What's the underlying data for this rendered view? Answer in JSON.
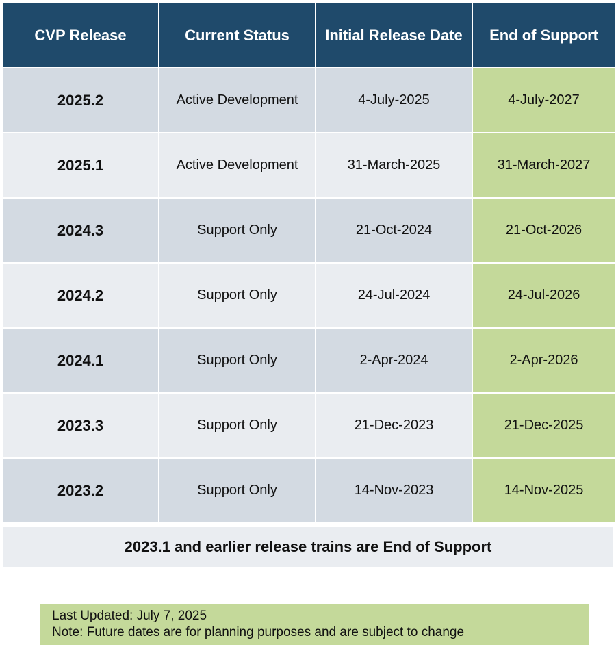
{
  "table": {
    "headers": [
      "CVP Release",
      "Current Status",
      "Initial Release Date",
      "End of Support"
    ],
    "rows": [
      {
        "release": "2025.2",
        "status": "Active Development",
        "initial": "4-July-2025",
        "end": "4-July-2027"
      },
      {
        "release": "2025.1",
        "status": "Active Development",
        "initial": "31-March-2025",
        "end": "31-March-2027"
      },
      {
        "release": "2024.3",
        "status": "Support Only",
        "initial": "21-Oct-2024",
        "end": "21-Oct-2026"
      },
      {
        "release": "2024.2",
        "status": "Support Only",
        "initial": "24-Jul-2024",
        "end": "24-Jul-2026"
      },
      {
        "release": "2024.1",
        "status": "Support Only",
        "initial": "2-Apr-2024",
        "end": "2-Apr-2026"
      },
      {
        "release": "2023.3",
        "status": "Support Only",
        "initial": "21-Dec-2023",
        "end": "21-Dec-2025"
      },
      {
        "release": "2023.2",
        "status": "Support Only",
        "initial": "14-Nov-2023",
        "end": "14-Nov-2025"
      }
    ],
    "footer_note": "2023.1 and earlier release trains are End of Support"
  },
  "notice": {
    "last_updated": "Last Updated: July 7, 2025",
    "note": "Note: Future dates are for planning purposes and are subject to change"
  },
  "colors": {
    "header_bg": "#1f4a6b",
    "row_dark": "#d3dae2",
    "row_light": "#eaedf1",
    "end_of_support_bg": "#c4d99a"
  }
}
